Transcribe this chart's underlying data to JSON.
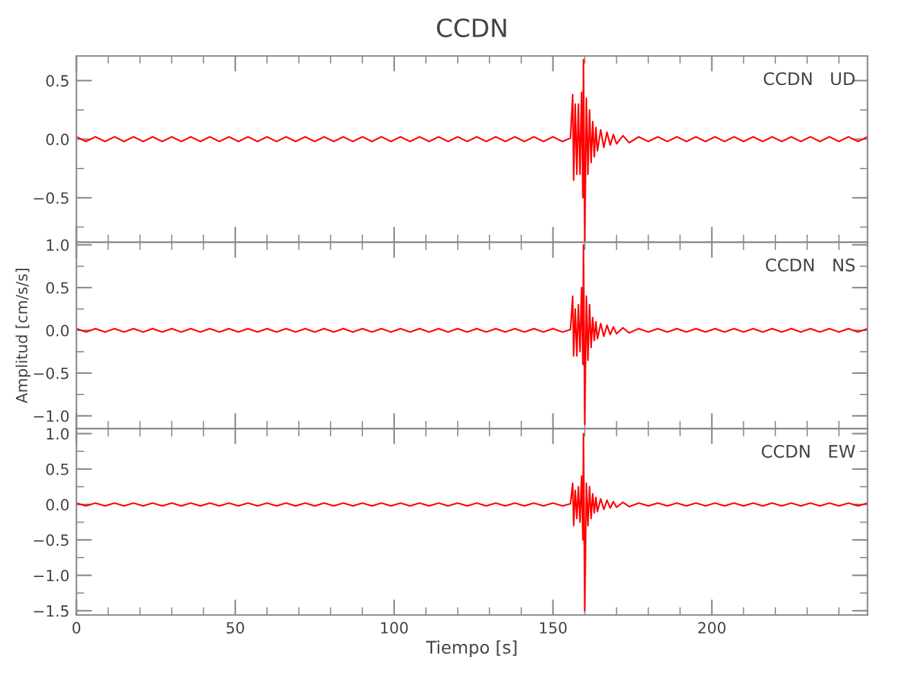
{
  "chart_data": [
    {
      "type": "line",
      "title": "CCDN",
      "annotations": [
        "CCDN   UD"
      ],
      "tick_labels": "y",
      "grid": false,
      "legend": false,
      "x": [
        0,
        3,
        6,
        9,
        12,
        15,
        18,
        21,
        24,
        27,
        30,
        33,
        36,
        39,
        42,
        45,
        48,
        51,
        54,
        57,
        60,
        63,
        66,
        69,
        72,
        75,
        78,
        81,
        84,
        87,
        90,
        93,
        96,
        99,
        102,
        105,
        108,
        111,
        114,
        117,
        120,
        123,
        126,
        129,
        132,
        135,
        138,
        141,
        144,
        147,
        150,
        153,
        155.5,
        156.2,
        156.5,
        157,
        157.5,
        158,
        158.5,
        159,
        159.4,
        159.6,
        160,
        160.5,
        161,
        161.5,
        162,
        162.5,
        163,
        163.5,
        164,
        165,
        166,
        167,
        168,
        169,
        170,
        172,
        174,
        177,
        180,
        183,
        186,
        189,
        192,
        195,
        198,
        201,
        204,
        207,
        210,
        213,
        216,
        219,
        222,
        225,
        228,
        231,
        234,
        237,
        240,
        243,
        246,
        249
      ],
      "series": [
        {
          "color": "#ff0000",
          "values": [
            0.02,
            -0.02,
            0.02,
            -0.02,
            0.02,
            -0.02,
            0.02,
            -0.02,
            0.02,
            -0.02,
            0.02,
            -0.02,
            0.02,
            -0.02,
            0.02,
            -0.02,
            0.02,
            -0.02,
            0.02,
            -0.02,
            0.02,
            -0.02,
            0.02,
            -0.02,
            0.02,
            -0.02,
            0.02,
            -0.02,
            0.02,
            -0.02,
            0.02,
            -0.02,
            0.02,
            -0.02,
            0.02,
            -0.02,
            0.02,
            -0.02,
            0.02,
            -0.02,
            0.02,
            -0.02,
            0.02,
            -0.02,
            0.02,
            -0.02,
            0.02,
            -0.02,
            0.02,
            -0.02,
            0.02,
            -0.02,
            0.01,
            0.38,
            -0.35,
            0.3,
            -0.3,
            0.3,
            -0.3,
            0.4,
            -0.5,
            0.68,
            -0.88,
            0.35,
            -0.3,
            0.25,
            -0.2,
            0.15,
            -0.15,
            0.1,
            -0.1,
            0.08,
            -0.07,
            0.06,
            -0.05,
            0.04,
            -0.04,
            0.03,
            -0.03,
            0.02,
            -0.02,
            0.02,
            -0.02,
            0.02,
            -0.02,
            0.02,
            -0.02,
            0.02,
            -0.02,
            0.02,
            -0.02,
            0.02,
            -0.02,
            0.02,
            -0.02,
            0.02,
            -0.02,
            0.02,
            -0.02,
            0.02,
            -0.02,
            0.02,
            -0.02,
            0.02
          ]
        }
      ],
      "xlim": [
        0,
        249
      ],
      "xticks": [
        0,
        50,
        100,
        150,
        200
      ],
      "ylim": [
        -0.88,
        0.71
      ],
      "yticks": [
        {
          "value": -0.5,
          "label": "−0.5"
        },
        {
          "value": 0,
          "label": "0.0"
        },
        {
          "value": 0.5,
          "label": "0.5"
        }
      ]
    },
    {
      "type": "line",
      "ylabel": "Amplitud [cm/s/s]",
      "annotations": [
        "CCDN   NS"
      ],
      "tick_labels": "y",
      "grid": false,
      "legend": false,
      "x": [
        0,
        3,
        6,
        9,
        12,
        15,
        18,
        21,
        24,
        27,
        30,
        33,
        36,
        39,
        42,
        45,
        48,
        51,
        54,
        57,
        60,
        63,
        66,
        69,
        72,
        75,
        78,
        81,
        84,
        87,
        90,
        93,
        96,
        99,
        102,
        105,
        108,
        111,
        114,
        117,
        120,
        123,
        126,
        129,
        132,
        135,
        138,
        141,
        144,
        147,
        150,
        153,
        155.5,
        156.2,
        156.5,
        157,
        157.5,
        158,
        158.5,
        159,
        159.4,
        159.6,
        160,
        160.5,
        161,
        161.5,
        162,
        162.5,
        163,
        163.5,
        164,
        165,
        166,
        167,
        168,
        169,
        170,
        172,
        174,
        177,
        180,
        183,
        186,
        189,
        192,
        195,
        198,
        201,
        204,
        207,
        210,
        213,
        216,
        219,
        222,
        225,
        228,
        231,
        234,
        237,
        240,
        243,
        246,
        249
      ],
      "series": [
        {
          "color": "#ff0000",
          "values": [
            0.02,
            -0.02,
            0.02,
            -0.02,
            0.02,
            -0.02,
            0.02,
            -0.02,
            0.02,
            -0.02,
            0.02,
            -0.02,
            0.02,
            -0.02,
            0.02,
            -0.02,
            0.02,
            -0.02,
            0.02,
            -0.02,
            0.02,
            -0.02,
            0.02,
            -0.02,
            0.02,
            -0.02,
            0.02,
            -0.02,
            0.02,
            -0.02,
            0.02,
            -0.02,
            0.02,
            -0.02,
            0.02,
            -0.02,
            0.02,
            -0.02,
            0.02,
            -0.02,
            0.02,
            -0.02,
            0.02,
            -0.02,
            0.02,
            -0.02,
            0.02,
            -0.02,
            0.02,
            -0.02,
            0.02,
            -0.02,
            0.01,
            0.4,
            -0.3,
            0.25,
            -0.3,
            0.3,
            -0.25,
            0.5,
            -0.4,
            1.0,
            -1.1,
            0.4,
            -0.35,
            0.3,
            -0.2,
            0.15,
            -0.12,
            0.1,
            -0.1,
            0.08,
            -0.07,
            0.06,
            -0.05,
            0.04,
            -0.04,
            0.03,
            -0.03,
            0.02,
            -0.02,
            0.02,
            -0.02,
            0.02,
            -0.02,
            0.02,
            -0.02,
            0.02,
            -0.02,
            0.02,
            -0.02,
            0.02,
            -0.02,
            0.02,
            -0.02,
            0.02,
            -0.02,
            0.02,
            -0.02,
            0.02,
            -0.02,
            0.02,
            -0.02,
            0.02
          ]
        }
      ],
      "xlim": [
        0,
        249
      ],
      "xticks": [
        0,
        50,
        100,
        150,
        200
      ],
      "ylim": [
        -1.15,
        1.03
      ],
      "yticks": [
        {
          "value": -1.0,
          "label": "−1.0"
        },
        {
          "value": -0.5,
          "label": "−0.5"
        },
        {
          "value": 0,
          "label": "0.0"
        },
        {
          "value": 0.5,
          "label": "0.5"
        },
        {
          "value": 1.0,
          "label": "1.0"
        }
      ]
    },
    {
      "type": "line",
      "xlabel": "Tiempo [s]",
      "annotations": [
        "CCDN   EW"
      ],
      "grid": false,
      "legend": false,
      "x": [
        0,
        3,
        6,
        9,
        12,
        15,
        18,
        21,
        24,
        27,
        30,
        33,
        36,
        39,
        42,
        45,
        48,
        51,
        54,
        57,
        60,
        63,
        66,
        69,
        72,
        75,
        78,
        81,
        84,
        87,
        90,
        93,
        96,
        99,
        102,
        105,
        108,
        111,
        114,
        117,
        120,
        123,
        126,
        129,
        132,
        135,
        138,
        141,
        144,
        147,
        150,
        153,
        155.5,
        156.2,
        156.5,
        157,
        157.5,
        158,
        158.5,
        159,
        159.4,
        159.6,
        160,
        160.5,
        161,
        161.5,
        162,
        162.5,
        163,
        163.5,
        164,
        165,
        166,
        167,
        168,
        169,
        170,
        172,
        174,
        177,
        180,
        183,
        186,
        189,
        192,
        195,
        198,
        201,
        204,
        207,
        210,
        213,
        216,
        219,
        222,
        225,
        228,
        231,
        234,
        237,
        240,
        243,
        246,
        249
      ],
      "series": [
        {
          "color": "#ff0000",
          "values": [
            0.02,
            -0.02,
            0.02,
            -0.02,
            0.02,
            -0.02,
            0.02,
            -0.02,
            0.02,
            -0.02,
            0.02,
            -0.02,
            0.02,
            -0.02,
            0.02,
            -0.02,
            0.02,
            -0.02,
            0.02,
            -0.02,
            0.02,
            -0.02,
            0.02,
            -0.02,
            0.02,
            -0.02,
            0.02,
            -0.02,
            0.02,
            -0.02,
            0.02,
            -0.02,
            0.02,
            -0.02,
            0.02,
            -0.02,
            0.02,
            -0.02,
            0.02,
            -0.02,
            0.02,
            -0.02,
            0.02,
            -0.02,
            0.02,
            -0.02,
            0.02,
            -0.02,
            0.02,
            -0.02,
            0.02,
            -0.02,
            0.01,
            0.3,
            -0.3,
            0.2,
            -0.2,
            0.25,
            -0.25,
            0.4,
            -0.5,
            1.0,
            -1.5,
            0.3,
            -0.3,
            0.25,
            -0.2,
            0.15,
            -0.12,
            0.1,
            -0.1,
            0.08,
            -0.07,
            0.06,
            -0.05,
            0.04,
            -0.04,
            0.03,
            -0.03,
            0.02,
            -0.02,
            0.02,
            -0.02,
            0.02,
            -0.02,
            0.02,
            -0.02,
            0.02,
            -0.02,
            0.02,
            -0.02,
            0.02,
            -0.02,
            0.02,
            -0.02,
            0.02,
            -0.02,
            0.02,
            -0.02,
            0.02,
            -0.02,
            0.02,
            -0.02,
            0.02
          ]
        }
      ],
      "xlim": [
        0,
        249
      ],
      "xticks": [
        0,
        50,
        100,
        150,
        200
      ],
      "ylim": [
        -1.56,
        1.07
      ],
      "yticks": [
        {
          "value": -1.5,
          "label": "−1.5"
        },
        {
          "value": -1.0,
          "label": "−1.0"
        },
        {
          "value": -0.5,
          "label": "−0.5"
        },
        {
          "value": 0,
          "label": "0.0"
        },
        {
          "value": 0.5,
          "label": "0.5"
        },
        {
          "value": 1.0,
          "label": "1.0"
        }
      ]
    }
  ]
}
